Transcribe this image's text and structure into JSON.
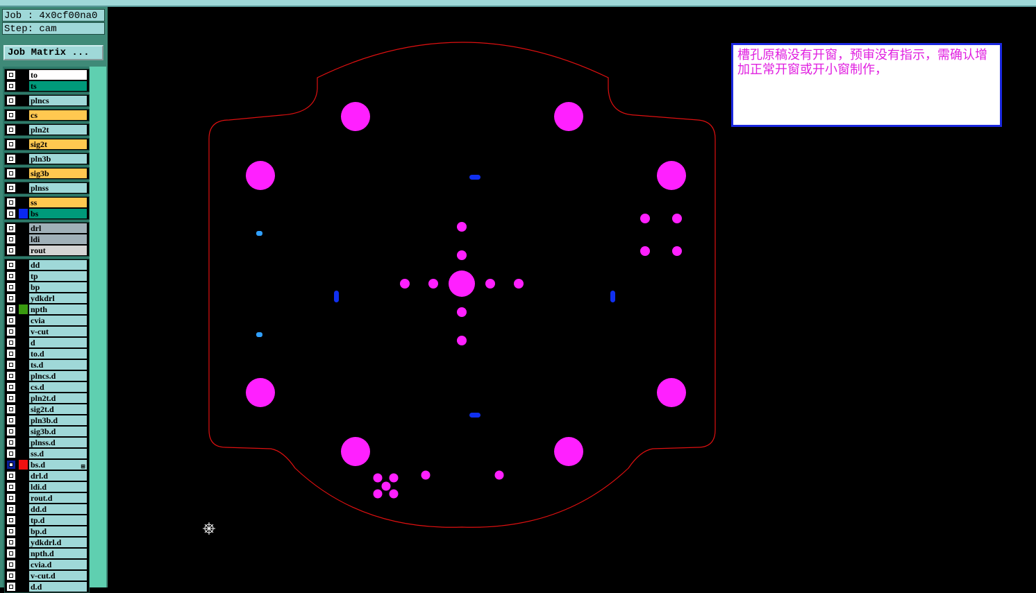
{
  "header": {
    "job_label": "Job : 4x0cf00na0",
    "step_label": "Step: cam",
    "job_matrix_button": "Job Matrix ..."
  },
  "layer_groups": [
    [
      {
        "name": "to",
        "color": "#ffffff"
      },
      {
        "name": "ts",
        "color": "#009a7a",
        "swatch": ""
      }
    ],
    [
      {
        "name": "plncs",
        "color": "#9fd8d8"
      }
    ],
    [
      {
        "name": "cs",
        "color": "#ffc850"
      }
    ],
    [
      {
        "name": "pln2t",
        "color": "#9fd8d8"
      }
    ],
    [
      {
        "name": "sig2t",
        "color": "#ffc850"
      }
    ],
    [
      {
        "name": "pln3b",
        "color": "#9fd8d8"
      }
    ],
    [
      {
        "name": "sig3b",
        "color": "#ffc850"
      }
    ],
    [
      {
        "name": "plnss",
        "color": "#9fd8d8"
      }
    ],
    [
      {
        "name": "ss",
        "color": "#ffc850"
      },
      {
        "name": "bs",
        "color": "#009a7a",
        "swatch": "#0a28f0"
      }
    ],
    [
      {
        "name": "drl",
        "color": "#a0b0b8"
      },
      {
        "name": "ldi",
        "color": "#a0b0b8"
      },
      {
        "name": "rout",
        "color": "#d4d4d4"
      }
    ],
    [
      {
        "name": "dd"
      },
      {
        "name": "tp"
      },
      {
        "name": "bp"
      },
      {
        "name": "ydkdrl"
      },
      {
        "name": "npth",
        "swatch": "#3a9a10"
      },
      {
        "name": "cvia"
      },
      {
        "name": "v-cut"
      },
      {
        "name": "d"
      },
      {
        "name": "to.d"
      },
      {
        "name": "ts.d"
      },
      {
        "name": "plncs.d"
      },
      {
        "name": "cs.d"
      },
      {
        "name": "pln2t.d"
      },
      {
        "name": "sig2t.d"
      },
      {
        "name": "pln3b.d"
      },
      {
        "name": "sig3b.d"
      },
      {
        "name": "plnss.d"
      },
      {
        "name": "ss.d"
      },
      {
        "name": "bs.d",
        "swatch": "#f01010",
        "selected": true
      },
      {
        "name": "drl.d"
      },
      {
        "name": "ldi.d"
      },
      {
        "name": "rout.d"
      },
      {
        "name": "dd.d"
      },
      {
        "name": "tp.d"
      },
      {
        "name": "bp.d"
      },
      {
        "name": "ydkdrl.d"
      },
      {
        "name": "npth.d"
      },
      {
        "name": "cvia.d"
      },
      {
        "name": "v-cut.d"
      },
      {
        "name": "d.d"
      }
    ]
  ],
  "note": {
    "text": "槽孔原稿没有开窗，预审没有指示，需确认增加正常开窗或开小窗制作，"
  },
  "colors": {
    "outline": "#e01010",
    "pad": "#ff20ff",
    "slot": "#1030f0",
    "small_via": "#30a0ff",
    "panel": "#9fd8d8"
  }
}
